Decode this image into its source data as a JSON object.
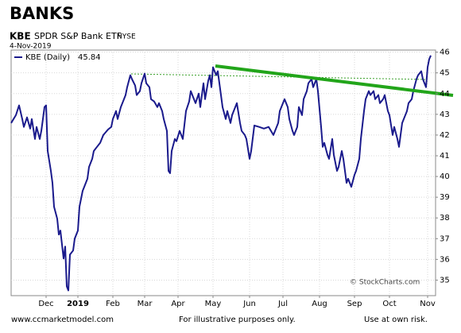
{
  "chart_data": {
    "type": "line",
    "title": "BANKS",
    "symbol": "KBE",
    "subtitle": "SPDR S&P Bank ETF",
    "exchange": "NYSE",
    "date": "4-Nov-2019",
    "watermark": "© StockCharts.com",
    "footer": [
      "www.ccmarketmodel.com",
      "For illustrative purposes only.",
      "Use at own risk."
    ],
    "xlim": [
      0,
      267
    ],
    "xticks": [
      {
        "value": 22,
        "label": "Dec"
      },
      {
        "value": 42,
        "label": "2019"
      },
      {
        "value": 64,
        "label": "Feb"
      },
      {
        "value": 84,
        "label": "Mar"
      },
      {
        "value": 105,
        "label": "Apr"
      },
      {
        "value": 127,
        "label": "May"
      },
      {
        "value": 150,
        "label": "Jun"
      },
      {
        "value": 171,
        "label": "Jul"
      },
      {
        "value": 194,
        "label": "Aug"
      },
      {
        "value": 216,
        "label": "Sep"
      },
      {
        "value": 238,
        "label": "Oct"
      },
      {
        "value": 262,
        "label": "Nov"
      }
    ],
    "ylim": [
      34.25,
      46.1
    ],
    "yticks": [
      35,
      36,
      37,
      38,
      39,
      40,
      41,
      42,
      43,
      44,
      45,
      46
    ],
    "grid": true,
    "series": [
      {
        "name": "KBE (Daily)",
        "color": "#1a1a8c",
        "x": [
          0,
          3,
          5,
          7,
          8,
          10,
          12,
          13,
          15,
          16,
          18,
          19,
          21,
          22,
          23,
          25,
          26,
          27,
          29,
          30,
          31,
          33,
          34,
          35,
          36,
          37,
          39,
          40,
          42,
          43,
          45,
          46,
          48,
          49,
          51,
          52,
          54,
          56,
          58,
          61,
          63,
          64,
          66,
          67,
          69,
          70,
          72,
          73,
          75,
          76,
          78,
          79,
          81,
          82,
          84,
          85,
          87,
          88,
          90,
          92,
          93,
          95,
          96,
          98,
          99,
          100,
          101,
          103,
          104,
          106,
          108,
          110,
          112,
          113,
          115,
          116,
          118,
          119,
          121,
          122,
          124,
          125,
          126,
          127,
          129,
          130,
          132,
          133,
          135,
          136,
          138,
          139,
          141,
          142,
          144,
          145,
          147,
          148,
          150,
          151,
          153,
          156,
          159,
          162,
          165,
          168,
          169,
          171,
          172,
          174,
          175,
          177,
          178,
          180,
          181,
          183,
          184,
          186,
          187,
          189,
          190,
          192,
          193,
          195,
          196,
          197,
          199,
          200,
          202,
          203,
          205,
          206,
          208,
          209,
          211,
          212,
          214,
          216,
          217,
          219,
          220,
          222,
          223,
          225,
          226,
          228,
          229,
          231,
          232,
          234,
          235,
          237,
          238,
          240,
          241,
          243,
          244,
          246,
          247,
          249,
          250,
          252,
          253,
          255,
          256,
          258,
          259,
          261,
          262,
          263,
          264
        ],
        "values": [
          42.58,
          42.96,
          43.43,
          42.77,
          42.39,
          42.85,
          42.31,
          42.77,
          41.81,
          42.39,
          41.81,
          42.2,
          43.35,
          43.43,
          41.23,
          40.27,
          39.69,
          38.54,
          37.96,
          37.2,
          37.39,
          36.04,
          36.62,
          34.7,
          34.5,
          36.23,
          36.43,
          37.0,
          37.39,
          38.54,
          39.31,
          39.5,
          39.89,
          40.46,
          40.85,
          41.23,
          41.43,
          41.62,
          42.0,
          42.27,
          42.39,
          42.77,
          43.16,
          42.77,
          43.35,
          43.54,
          43.93,
          44.31,
          44.89,
          44.7,
          44.39,
          43.93,
          44.12,
          44.5,
          44.96,
          44.5,
          44.31,
          43.73,
          43.62,
          43.35,
          43.54,
          43.16,
          42.77,
          42.2,
          40.27,
          40.16,
          41.23,
          41.81,
          41.7,
          42.2,
          41.81,
          43.16,
          43.62,
          44.12,
          43.73,
          43.54,
          44.0,
          43.35,
          44.5,
          43.73,
          44.62,
          44.89,
          44.31,
          45.27,
          44.89,
          45.08,
          43.93,
          43.35,
          42.77,
          43.16,
          42.58,
          42.96,
          43.35,
          43.54,
          42.58,
          42.2,
          42.0,
          41.81,
          40.85,
          41.23,
          42.46,
          42.39,
          42.31,
          42.39,
          42.0,
          42.58,
          43.16,
          43.54,
          43.73,
          43.35,
          42.77,
          42.2,
          42.0,
          42.39,
          43.35,
          42.96,
          43.73,
          44.12,
          44.5,
          44.7,
          44.31,
          44.7,
          44.12,
          42.39,
          41.43,
          41.62,
          41.04,
          40.85,
          41.81,
          41.04,
          40.27,
          40.46,
          41.23,
          40.85,
          39.69,
          39.89,
          39.5,
          40.08,
          40.27,
          40.85,
          41.81,
          43.16,
          43.73,
          44.12,
          43.93,
          44.12,
          43.73,
          43.93,
          43.54,
          43.73,
          43.93,
          43.16,
          42.96,
          42.0,
          42.39,
          41.81,
          41.43,
          42.58,
          42.77,
          43.16,
          43.54,
          43.73,
          44.12,
          44.7,
          44.89,
          45.08,
          44.7,
          44.31,
          45.27,
          45.66,
          45.84
        ]
      }
    ]
  }
}
